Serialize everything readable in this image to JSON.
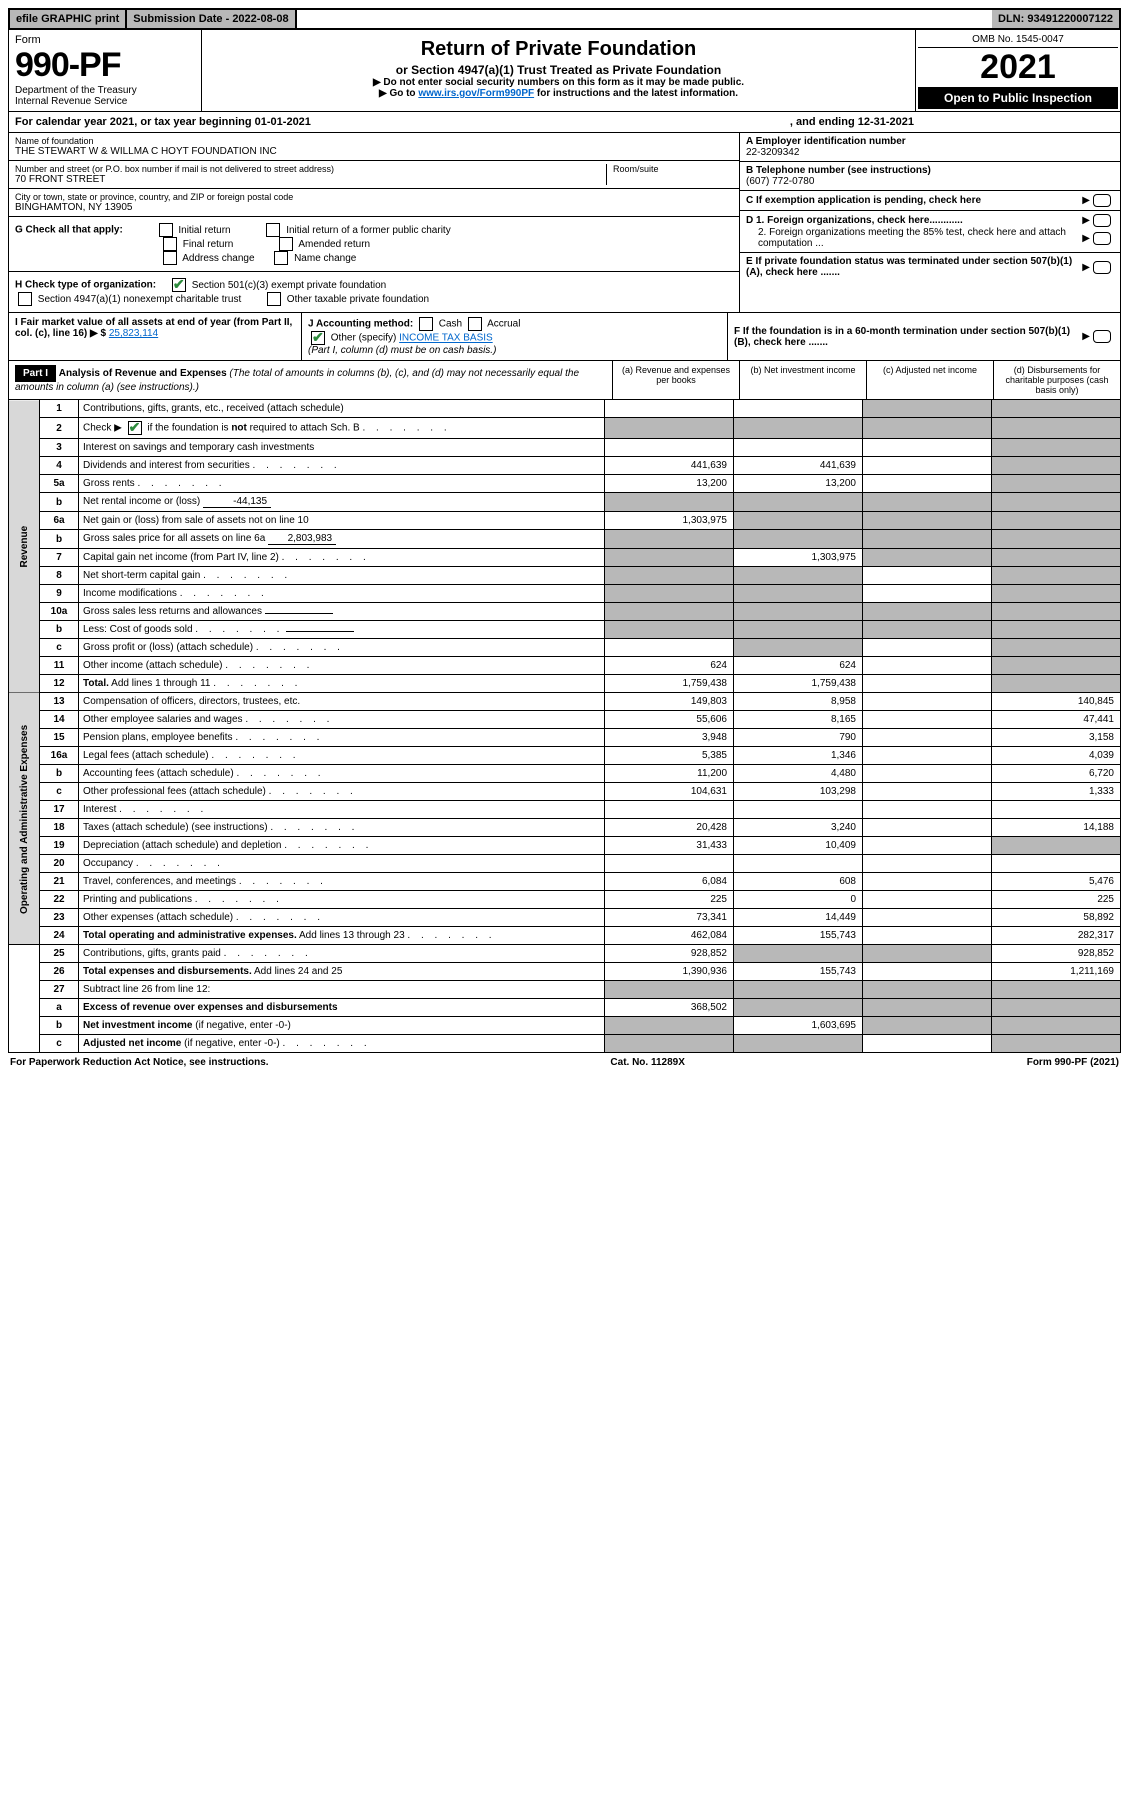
{
  "topbar": {
    "efile": "efile GRAPHIC print",
    "submission": "Submission Date - 2022-08-08",
    "dln": "DLN: 93491220007122"
  },
  "header": {
    "form_word": "Form",
    "form_no": "990-PF",
    "dept": "Department of the Treasury",
    "irs": "Internal Revenue Service",
    "title": "Return of Private Foundation",
    "subtitle": "or Section 4947(a)(1) Trust Treated as Private Foundation",
    "instr1": "▶ Do not enter social security numbers on this form as it may be made public.",
    "instr2_pre": "▶ Go to ",
    "instr2_link": "www.irs.gov/Form990PF",
    "instr2_post": " for instructions and the latest information.",
    "omb": "OMB No. 1545-0047",
    "year": "2021",
    "inspection": "Open to Public Inspection"
  },
  "calyear": {
    "text_a": "For calendar year 2021, or tax year beginning 01-01-2021",
    "text_b": ", and ending 12-31-2021"
  },
  "ident": {
    "name_label": "Name of foundation",
    "name": "THE STEWART W & WILLMA C HOYT FOUNDATION INC",
    "addr_label": "Number and street (or P.O. box number if mail is not delivered to street address)",
    "addr": "70 FRONT STREET",
    "room_label": "Room/suite",
    "city_label": "City or town, state or province, country, and ZIP or foreign postal code",
    "city": "BINGHAMTON, NY  13905",
    "a_label": "A Employer identification number",
    "a_val": "22-3209342",
    "b_label": "B Telephone number (see instructions)",
    "b_val": "(607) 772-0780",
    "c_label": "C If exemption application is pending, check here",
    "d1": "D 1. Foreign organizations, check here............",
    "d2": "2. Foreign organizations meeting the 85% test, check here and attach computation ...",
    "e_label": "E  If private foundation status was terminated under section 507(b)(1)(A), check here .......",
    "f_label": "F  If the foundation is in a 60-month termination under section 507(b)(1)(B), check here .......",
    "g_label": "G Check all that apply:",
    "g_opts": [
      "Initial return",
      "Initial return of a former public charity",
      "Final return",
      "Amended return",
      "Address change",
      "Name change"
    ],
    "h_label": "H Check type of organization:",
    "h_opt1": "Section 501(c)(3) exempt private foundation",
    "h_opt2": "Section 4947(a)(1) nonexempt charitable trust",
    "h_opt3": "Other taxable private foundation",
    "i_label": "I Fair market value of all assets at end of year (from Part II, col. (c), line 16) ▶ $",
    "i_val": "25,823,114",
    "j_label": "J Accounting method:",
    "j_cash": "Cash",
    "j_accrual": "Accrual",
    "j_other": "Other (specify)",
    "j_other_val": "INCOME TAX BASIS",
    "j_note": "(Part I, column (d) must be on cash basis.)"
  },
  "part1": {
    "label": "Part I",
    "title": "Analysis of Revenue and Expenses",
    "title_note": " (The total of amounts in columns (b), (c), and (d) may not necessarily equal the amounts in column (a) (see instructions).)",
    "col_a": "(a) Revenue and expenses per books",
    "col_b": "(b) Net investment income",
    "col_c": "(c) Adjusted net income",
    "col_d": "(d) Disbursements for charitable purposes (cash basis only)"
  },
  "sections": {
    "revenue": "Revenue",
    "opex": "Operating and Administrative Expenses"
  },
  "rows": [
    {
      "n": "1",
      "t": "Contributions, gifts, grants, etc., received (attach schedule)",
      "a": "",
      "b": "",
      "c": "s",
      "d": "s"
    },
    {
      "n": "2",
      "t_html": "Check ▶ [X] if the foundation is <b>not</b> required to attach Sch. B",
      "a": "s",
      "b": "s",
      "c": "s",
      "d": "s",
      "dots": true
    },
    {
      "n": "3",
      "t": "Interest on savings and temporary cash investments",
      "a": "",
      "b": "",
      "c": "",
      "d": "s"
    },
    {
      "n": "4",
      "t": "Dividends and interest from securities",
      "a": "441,639",
      "b": "441,639",
      "c": "",
      "d": "s",
      "dots": true
    },
    {
      "n": "5a",
      "t": "Gross rents",
      "a": "13,200",
      "b": "13,200",
      "c": "",
      "d": "s",
      "dots": true
    },
    {
      "n": "b",
      "t": "Net rental income or (loss)",
      "inline": "-44,135",
      "a": "s",
      "b": "s",
      "c": "s",
      "d": "s"
    },
    {
      "n": "6a",
      "t": "Net gain or (loss) from sale of assets not on line 10",
      "a": "1,303,975",
      "b": "s",
      "c": "s",
      "d": "s"
    },
    {
      "n": "b",
      "t": "Gross sales price for all assets on line 6a",
      "inline": "2,803,983",
      "a": "s",
      "b": "s",
      "c": "s",
      "d": "s"
    },
    {
      "n": "7",
      "t": "Capital gain net income (from Part IV, line 2)",
      "a": "s",
      "b": "1,303,975",
      "c": "s",
      "d": "s",
      "dots": true
    },
    {
      "n": "8",
      "t": "Net short-term capital gain",
      "a": "s",
      "b": "s",
      "c": "",
      "d": "s",
      "dots": true
    },
    {
      "n": "9",
      "t": "Income modifications",
      "a": "s",
      "b": "s",
      "c": "",
      "d": "s",
      "dots": true
    },
    {
      "n": "10a",
      "t": "Gross sales less returns and allowances",
      "inline": " ",
      "a": "s",
      "b": "s",
      "c": "s",
      "d": "s"
    },
    {
      "n": "b",
      "t": "Less: Cost of goods sold",
      "inline": " ",
      "a": "s",
      "b": "s",
      "c": "s",
      "d": "s",
      "dots": true
    },
    {
      "n": "c",
      "t": "Gross profit or (loss) (attach schedule)",
      "a": "",
      "b": "s",
      "c": "",
      "d": "s",
      "dots": true
    },
    {
      "n": "11",
      "t": "Other income (attach schedule)",
      "a": "624",
      "b": "624",
      "c": "",
      "d": "s",
      "dots": true
    },
    {
      "n": "12",
      "t": "<b>Total.</b> Add lines 1 through 11",
      "a": "1,759,438",
      "b": "1,759,438",
      "c": "",
      "d": "s",
      "dots": true
    },
    {
      "n": "13",
      "t": "Compensation of officers, directors, trustees, etc.",
      "a": "149,803",
      "b": "8,958",
      "c": "",
      "d": "140,845"
    },
    {
      "n": "14",
      "t": "Other employee salaries and wages",
      "a": "55,606",
      "b": "8,165",
      "c": "",
      "d": "47,441",
      "dots": true
    },
    {
      "n": "15",
      "t": "Pension plans, employee benefits",
      "a": "3,948",
      "b": "790",
      "c": "",
      "d": "3,158",
      "dots": true
    },
    {
      "n": "16a",
      "t": "Legal fees (attach schedule)",
      "a": "5,385",
      "b": "1,346",
      "c": "",
      "d": "4,039",
      "dots": true
    },
    {
      "n": "b",
      "t": "Accounting fees (attach schedule)",
      "a": "11,200",
      "b": "4,480",
      "c": "",
      "d": "6,720",
      "dots": true
    },
    {
      "n": "c",
      "t": "Other professional fees (attach schedule)",
      "a": "104,631",
      "b": "103,298",
      "c": "",
      "d": "1,333",
      "dots": true
    },
    {
      "n": "17",
      "t": "Interest",
      "a": "",
      "b": "",
      "c": "",
      "d": "",
      "dots": true
    },
    {
      "n": "18",
      "t": "Taxes (attach schedule) (see instructions)",
      "a": "20,428",
      "b": "3,240",
      "c": "",
      "d": "14,188",
      "dots": true
    },
    {
      "n": "19",
      "t": "Depreciation (attach schedule) and depletion",
      "a": "31,433",
      "b": "10,409",
      "c": "",
      "d": "s",
      "dots": true
    },
    {
      "n": "20",
      "t": "Occupancy",
      "a": "",
      "b": "",
      "c": "",
      "d": "",
      "dots": true
    },
    {
      "n": "21",
      "t": "Travel, conferences, and meetings",
      "a": "6,084",
      "b": "608",
      "c": "",
      "d": "5,476",
      "dots": true
    },
    {
      "n": "22",
      "t": "Printing and publications",
      "a": "225",
      "b": "0",
      "c": "",
      "d": "225",
      "dots": true
    },
    {
      "n": "23",
      "t": "Other expenses (attach schedule)",
      "a": "73,341",
      "b": "14,449",
      "c": "",
      "d": "58,892",
      "dots": true
    },
    {
      "n": "24",
      "t": "<b>Total operating and administrative expenses.</b> Add lines 13 through 23",
      "a": "462,084",
      "b": "155,743",
      "c": "",
      "d": "282,317",
      "dots": true
    },
    {
      "n": "25",
      "t": "Contributions, gifts, grants paid",
      "a": "928,852",
      "b": "s",
      "c": "s",
      "d": "928,852",
      "dots": true
    },
    {
      "n": "26",
      "t": "<b>Total expenses and disbursements.</b> Add lines 24 and 25",
      "a": "1,390,936",
      "b": "155,743",
      "c": "",
      "d": "1,211,169"
    },
    {
      "n": "27",
      "t": "Subtract line 26 from line 12:",
      "a": "s",
      "b": "s",
      "c": "s",
      "d": "s"
    },
    {
      "n": "a",
      "t": "<b>Excess of revenue over expenses and disbursements</b>",
      "a": "368,502",
      "b": "s",
      "c": "s",
      "d": "s"
    },
    {
      "n": "b",
      "t": "<b>Net investment income</b> (if negative, enter -0-)",
      "a": "s",
      "b": "1,603,695",
      "c": "s",
      "d": "s"
    },
    {
      "n": "c",
      "t": "<b>Adjusted net income</b> (if negative, enter -0-)",
      "a": "s",
      "b": "s",
      "c": "",
      "d": "s",
      "dots": true
    }
  ],
  "footer": {
    "left": "For Paperwork Reduction Act Notice, see instructions.",
    "center": "Cat. No. 11289X",
    "right": "Form 990-PF (2021)"
  },
  "colors": {
    "shaded": "#b8b8b8",
    "link": "#0066cc",
    "check": "#2e8b3d"
  }
}
